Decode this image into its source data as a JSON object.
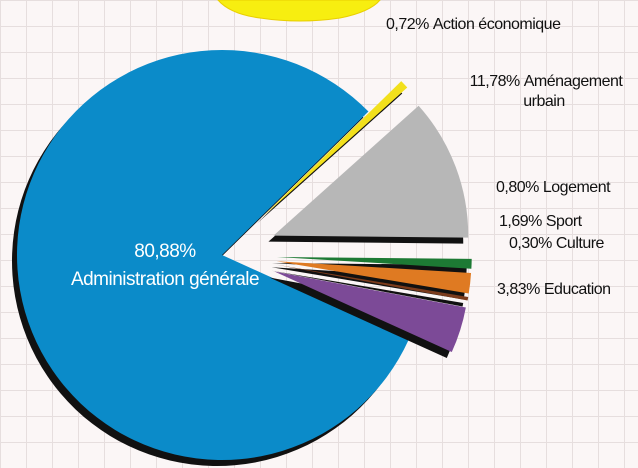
{
  "chart_data": {
    "type": "pie",
    "categories": [
      "Administration générale",
      "Action économique",
      "Aménagement urbain",
      "Logement",
      "Sport",
      "Culture",
      "Education"
    ],
    "values": [
      80.88,
      0.72,
      11.78,
      0.8,
      1.69,
      0.3,
      3.83
    ],
    "value_labels": [
      "80,88%",
      "0,72%",
      "11,78%",
      "0,80%",
      "1,69%",
      "0,30%",
      "3,83%"
    ],
    "colors": [
      "#0b8bc9",
      "#f2e01c",
      "#b7b7b7",
      "#1d7a34",
      "#df7a22",
      "#7b3b1c",
      "#7c4a97"
    ]
  }
}
